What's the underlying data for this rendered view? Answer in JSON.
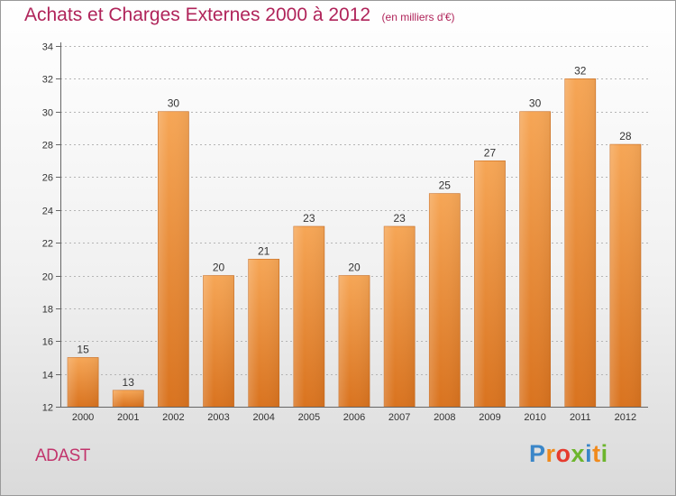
{
  "header": {
    "title": "Achats et Charges Externes 2000 à 2012",
    "subtitle": "(en milliers d'€)"
  },
  "footer": {
    "commune": "ADAST",
    "logo": "Proxiti"
  },
  "colors": {
    "title": "#b0245a",
    "bar_light": "#f6a656",
    "bar_dark": "#d9731f",
    "grid": "#b5b5b5"
  },
  "chart_data": {
    "type": "bar",
    "title": "Achats et Charges Externes 2000 à 2012",
    "subtitle": "(en milliers d'€)",
    "xlabel": "",
    "ylabel": "",
    "categories": [
      "2000",
      "2001",
      "2002",
      "2003",
      "2004",
      "2005",
      "2006",
      "2007",
      "2008",
      "2009",
      "2010",
      "2011",
      "2012"
    ],
    "values": [
      15,
      13,
      30,
      20,
      21,
      23,
      20,
      23,
      25,
      27,
      30,
      32,
      28
    ],
    "ylim": [
      12,
      34
    ],
    "yticks": [
      12,
      14,
      16,
      18,
      20,
      22,
      24,
      26,
      28,
      30,
      32,
      34
    ],
    "grid": true,
    "data_labels": true
  }
}
